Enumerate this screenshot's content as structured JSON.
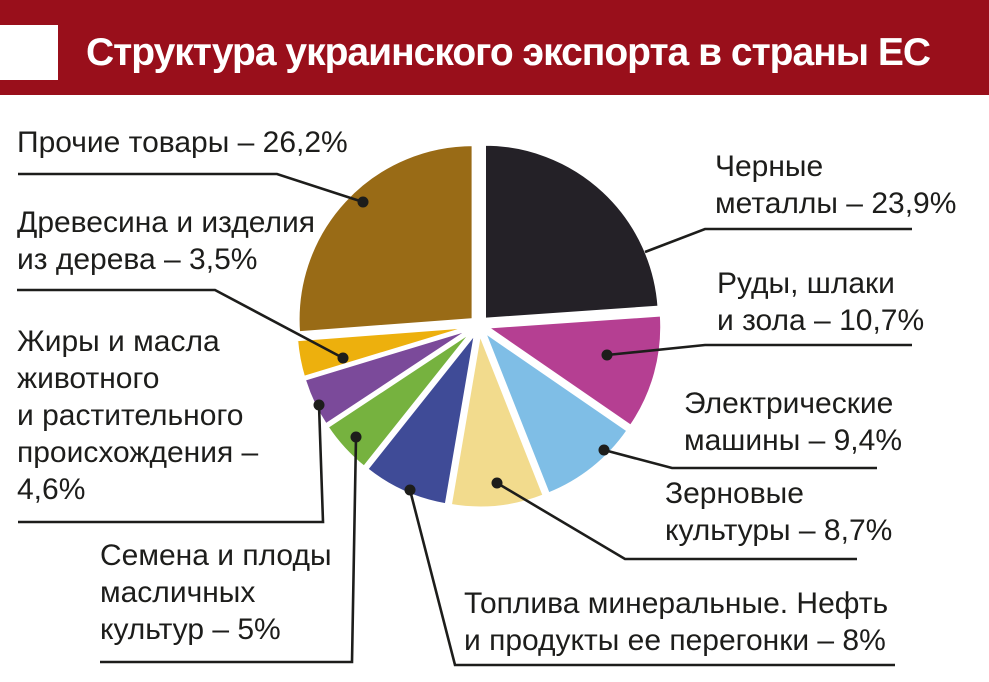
{
  "header": {
    "title": "Структура украинского экспорта в страны ЕС",
    "bar_color": "#990F1B",
    "title_color": "#FFFFFF"
  },
  "chart_data": {
    "type": "pie",
    "title": "Структура украинского экспорта в страны ЕС",
    "unit": "%",
    "start_angle_deg": 0,
    "direction": "clockwise",
    "exploded": true,
    "slices": [
      {
        "label": "Черные металлы",
        "value": 23.9,
        "color": "#242127"
      },
      {
        "label": "Руды, шлаки и зола",
        "value": 10.7,
        "color": "#B53F92"
      },
      {
        "label": "Электрические машины",
        "value": 9.4,
        "color": "#7FBEE6"
      },
      {
        "label": "Зерновые культуры",
        "value": 8.7,
        "color": "#F2DB8D"
      },
      {
        "label": "Топлива минеральные. Нефть и продукты ее перегонки",
        "value": 8,
        "color": "#3F4B97"
      },
      {
        "label": "Семена и плоды масличных культур",
        "value": 5,
        "color": "#76B23F"
      },
      {
        "label": "Жиры и масла животного и растительного происхождения",
        "value": 4.6,
        "color": "#7B4A9A"
      },
      {
        "label": "Древесина и изделия из дерева",
        "value": 3.5,
        "color": "#EDB00D"
      },
      {
        "label": "Прочие товары",
        "value": 26.2,
        "color": "#996B16"
      }
    ],
    "leader_line_color": "#1d1d1b"
  },
  "callouts": {
    "prochie": "Прочие товары – 26,2%",
    "drevesina": "Древесина и изделия\nиз дерева – 3,5%",
    "zhiry": "Жиры и масла\nживотного\nи растительного\nпроисхождения –\n4,6%",
    "semena": "Семена и плоды\nмасличных\nкультур – 5%",
    "chernye": "Черные\nметаллы – 23,9%",
    "rudy": "Руды, шлаки\nи зола – 10,7%",
    "elektro": "Электрические\nмашины – 9,4%",
    "zernovye": "Зерновые\nкультуры – 8,7%",
    "topliva": "Топлива минеральные. Нефть\nи продукты ее перегонки – 8%"
  }
}
